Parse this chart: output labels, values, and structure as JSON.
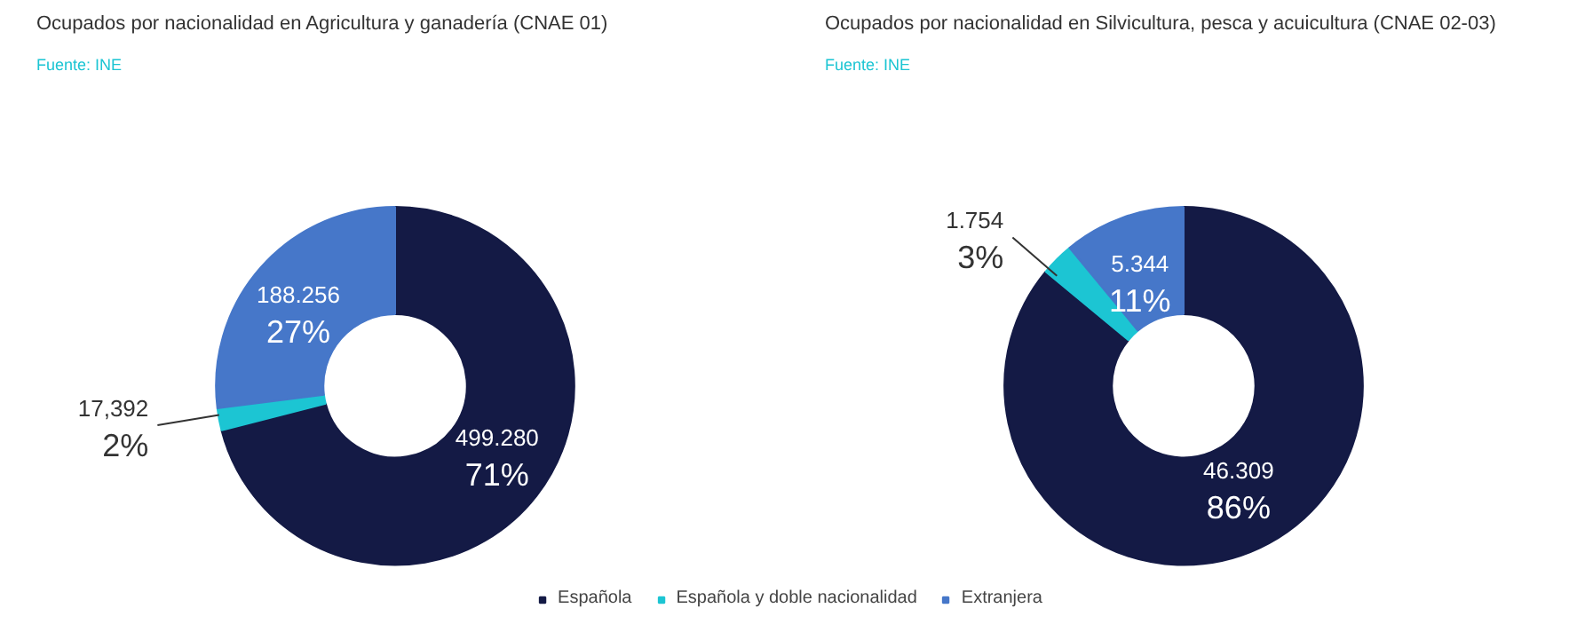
{
  "chart_data": [
    {
      "type": "donut",
      "title": "Ocupados por nacionalidad en Agricultura y ganadería (CNAE 01)",
      "subtitle": "Fuente: INE",
      "categories": [
        "Española",
        "Española y doble nacionalidad",
        "Extranjera"
      ],
      "values": [
        71,
        2,
        27
      ],
      "value_labels": [
        "499.280\n71%",
        "17,392\n2%",
        "188.256\n27%"
      ],
      "colors": [
        "#141a45",
        "#1cc5d3",
        "#4677c9"
      ],
      "legend": "bottom"
    },
    {
      "type": "donut",
      "title": "Ocupados por nacionalidad en Silvicultura, pesca y acuicultura (CNAE 02-03)",
      "subtitle": "Fuente: INE",
      "categories": [
        null,
        null,
        null
      ],
      "values": [
        86,
        3,
        11
      ],
      "value_labels": [
        "46.309\n86%",
        "1.754\n3%",
        "5.344\n11%"
      ],
      "colors": [
        "#141a45",
        "#1cc5d3",
        "#4677c9"
      ]
    }
  ]
}
